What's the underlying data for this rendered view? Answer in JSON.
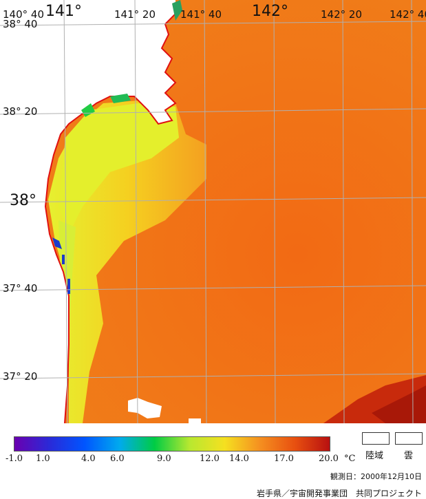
{
  "map": {
    "longitude_labels": [
      "140° 40",
      "141°",
      "141° 20",
      "141° 40",
      "142°",
      "142° 20",
      "142° 40"
    ],
    "latitude_labels": [
      "38° 40",
      "38° 20",
      "38°",
      "37° 40",
      "37° 20"
    ]
  },
  "legend": {
    "unit": "°C",
    "ticks": [
      "-1.0",
      "1.0",
      "4.0",
      "6.0",
      "9.0",
      "12.0",
      "14.0",
      "17.0",
      "20.0"
    ],
    "colors": [
      "#6a00b0",
      "#2a2ad8",
      "#0055ff",
      "#00aaee",
      "#00cc44",
      "#b8e830",
      "#f5e020",
      "#f59020",
      "#e85010",
      "#b81010"
    ],
    "land_label": "陸域",
    "cloud_label": "雲"
  },
  "footer": {
    "observation_date": "観測日：2000年12月10日",
    "credit": "岩手県／宇宙開発事業団　共同プロジェクト"
  }
}
